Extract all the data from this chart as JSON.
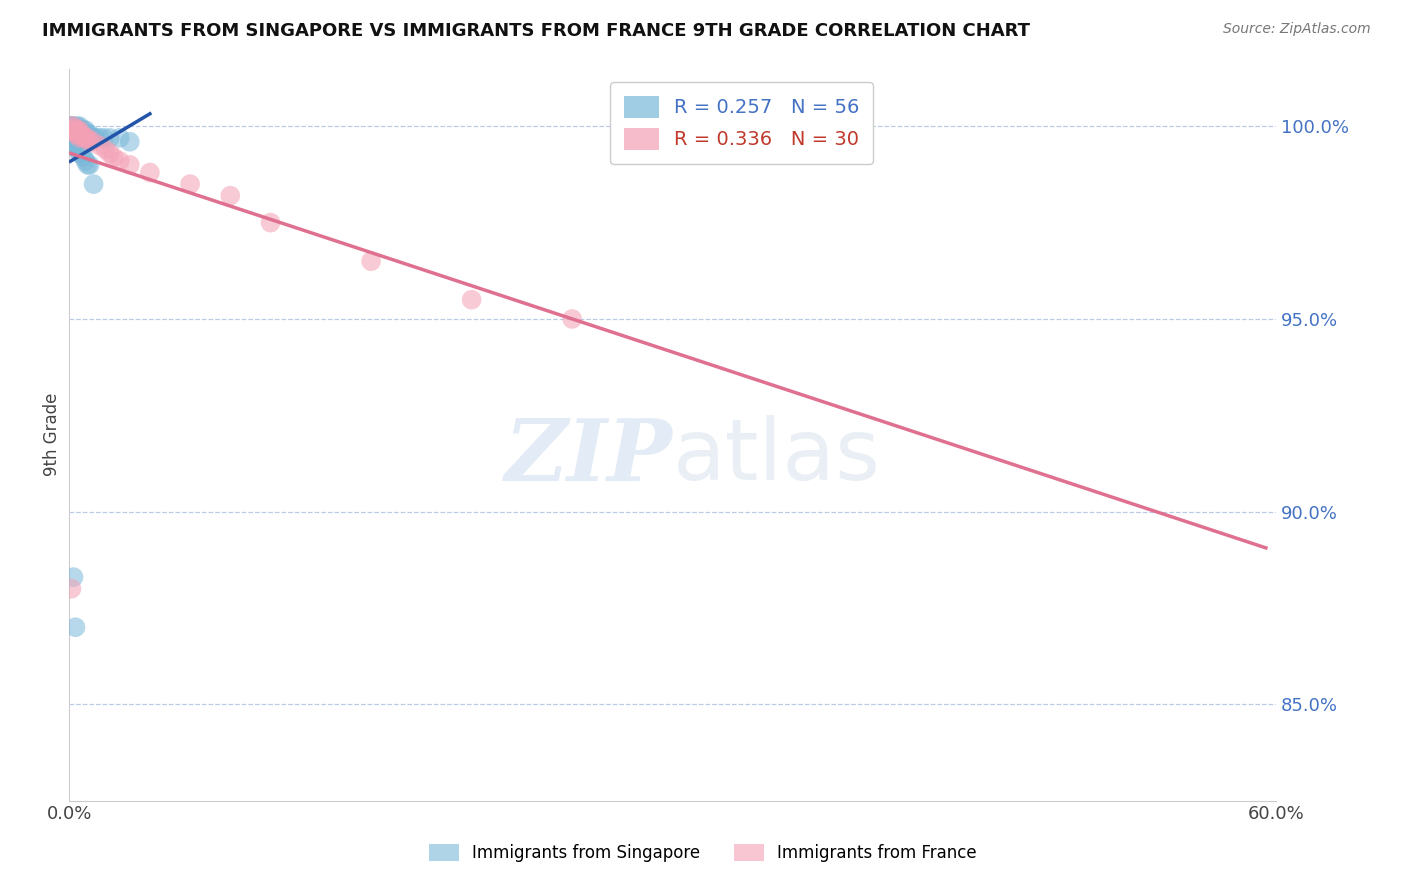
{
  "title": "IMMIGRANTS FROM SINGAPORE VS IMMIGRANTS FROM FRANCE 9TH GRADE CORRELATION CHART",
  "source": "Source: ZipAtlas.com",
  "ylabel": "9th Grade",
  "xlim": [
    0.0,
    0.6
  ],
  "ylim": [
    0.825,
    1.015
  ],
  "ytick_vals": [
    0.85,
    0.9,
    0.95,
    1.0
  ],
  "ytick_labels": [
    "85.0%",
    "90.0%",
    "95.0%",
    "100.0%"
  ],
  "singapore_color": "#7ab8d9",
  "france_color": "#f4a0b5",
  "singapore_line_color": "#2255aa",
  "france_line_color": "#e07090",
  "singapore_R": 0.257,
  "singapore_N": 56,
  "france_R": 0.336,
  "france_N": 30,
  "watermark": "ZIPatlas",
  "singapore_x": [
    0.001,
    0.001,
    0.001,
    0.001,
    0.001,
    0.001,
    0.001,
    0.002,
    0.002,
    0.002,
    0.002,
    0.002,
    0.002,
    0.003,
    0.003,
    0.003,
    0.003,
    0.003,
    0.004,
    0.004,
    0.004,
    0.004,
    0.005,
    0.005,
    0.005,
    0.006,
    0.006,
    0.007,
    0.007,
    0.008,
    0.008,
    0.009,
    0.009,
    0.01,
    0.011,
    0.012,
    0.013,
    0.015,
    0.017,
    0.02,
    0.025,
    0.03,
    0.001,
    0.001,
    0.002,
    0.003,
    0.004,
    0.005,
    0.006,
    0.007,
    0.008,
    0.009,
    0.01,
    0.012,
    0.002,
    0.003
  ],
  "singapore_y": [
    1.0,
    1.0,
    1.0,
    1.0,
    0.999,
    0.999,
    0.998,
    1.0,
    1.0,
    0.999,
    0.999,
    0.998,
    0.997,
    1.0,
    0.999,
    0.999,
    0.998,
    0.997,
    1.0,
    0.999,
    0.998,
    0.997,
    1.0,
    0.999,
    0.998,
    0.999,
    0.998,
    0.999,
    0.998,
    0.999,
    0.997,
    0.998,
    0.997,
    0.998,
    0.997,
    0.997,
    0.997,
    0.997,
    0.997,
    0.997,
    0.997,
    0.996,
    0.996,
    0.995,
    0.995,
    0.995,
    0.994,
    0.993,
    0.993,
    0.992,
    0.991,
    0.99,
    0.99,
    0.985,
    0.883,
    0.87
  ],
  "france_x": [
    0.001,
    0.001,
    0.002,
    0.002,
    0.003,
    0.003,
    0.004,
    0.004,
    0.005,
    0.005,
    0.006,
    0.007,
    0.008,
    0.009,
    0.01,
    0.012,
    0.015,
    0.018,
    0.02,
    0.022,
    0.025,
    0.03,
    0.04,
    0.06,
    0.08,
    0.1,
    0.15,
    0.2,
    0.25,
    0.001
  ],
  "france_y": [
    1.0,
    0.999,
    1.0,
    0.999,
    0.999,
    0.998,
    0.999,
    0.998,
    0.999,
    0.997,
    0.998,
    0.997,
    0.997,
    0.997,
    0.996,
    0.996,
    0.995,
    0.994,
    0.993,
    0.992,
    0.991,
    0.99,
    0.988,
    0.985,
    0.982,
    0.975,
    0.965,
    0.955,
    0.95,
    0.88
  ],
  "sg_line_x0": 0.0005,
  "sg_line_x1": 0.04,
  "fr_line_x0": 0.0005,
  "fr_line_x1": 0.595
}
